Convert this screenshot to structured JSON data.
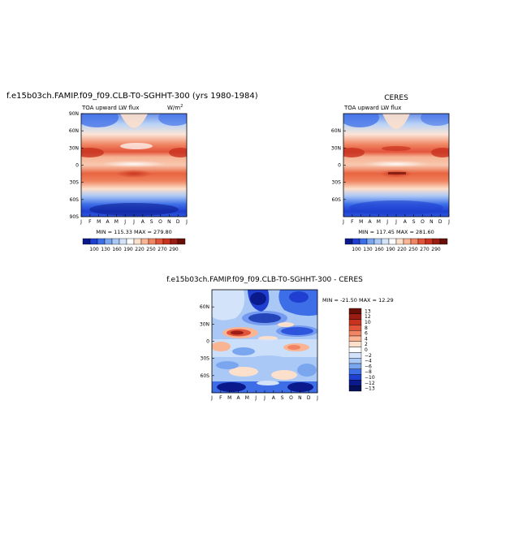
{
  "chart_data": [
    {
      "type": "heatmap",
      "title": "f.e15b03ch.FAMIP.f09_f09.CLB-T0-SGHHT-300 (yrs 1980-1984)",
      "subtitle_left": "TOA upward LW flux",
      "units": "W/m",
      "units_sup": "2",
      "x_ticks": [
        "J",
        "F",
        "M",
        "A",
        "M",
        "J",
        "J",
        "A",
        "S",
        "O",
        "N",
        "D",
        "J"
      ],
      "y_ticks": [
        "90N",
        "60N",
        "30N",
        "0",
        "30S",
        "60S",
        "90S"
      ],
      "stats": "MIN = 115.33  MAX = 279.80",
      "colorbar_labels": [
        "100",
        "130",
        "160",
        "190",
        "220",
        "250",
        "270",
        "290"
      ]
    },
    {
      "type": "heatmap",
      "title": "CERES",
      "subtitle_left": "TOA upward LW flux",
      "x_ticks": [
        "J",
        "F",
        "M",
        "A",
        "M",
        "J",
        "J",
        "A",
        "S",
        "O",
        "N",
        "D",
        "J"
      ],
      "y_ticks": [
        "60N",
        "30N",
        "0",
        "30S",
        "60S"
      ],
      "stats": "MIN = 117.45  MAX = 281.60",
      "colorbar_labels": [
        "100",
        "130",
        "160",
        "190",
        "220",
        "250",
        "270",
        "290"
      ]
    },
    {
      "type": "heatmap",
      "title": "f.e15b03ch.FAMIP.f09_f09.CLB-T0-SGHHT-300  -  CERES",
      "x_ticks": [
        "J",
        "F",
        "M",
        "A",
        "M",
        "J",
        "J",
        "A",
        "S",
        "O",
        "N",
        "D",
        "J"
      ],
      "y_ticks": [
        "60N",
        "30N",
        "0",
        "30S",
        "60S"
      ],
      "stats": "MIN = -21.50  MAX =  12.29",
      "colorbar_labels": [
        "13",
        "12",
        "10",
        "8",
        "6",
        "4",
        "2",
        "0",
        "−2",
        "−4",
        "−6",
        "−8",
        "−10",
        "−12",
        "−13"
      ]
    }
  ],
  "colors": {
    "abs_scale": [
      "#0a1a8c",
      "#1f3fd0",
      "#3d6ee8",
      "#7aa6f0",
      "#aac8f6",
      "#d2e3fa",
      "#ffffff",
      "#fde0cc",
      "#f9b493",
      "#f18563",
      "#e2543a",
      "#c8321f",
      "#9b1c12",
      "#6a0f08"
    ],
    "diff_scale": [
      "#6a0f08",
      "#9b1c12",
      "#c8321f",
      "#e2543a",
      "#f18563",
      "#f9b493",
      "#fde0cc",
      "#ffffff",
      "#d2e3fa",
      "#aac8f6",
      "#7aa6f0",
      "#3d6ee8",
      "#1f3fd0",
      "#0a1a8c",
      "#060f5a"
    ]
  }
}
